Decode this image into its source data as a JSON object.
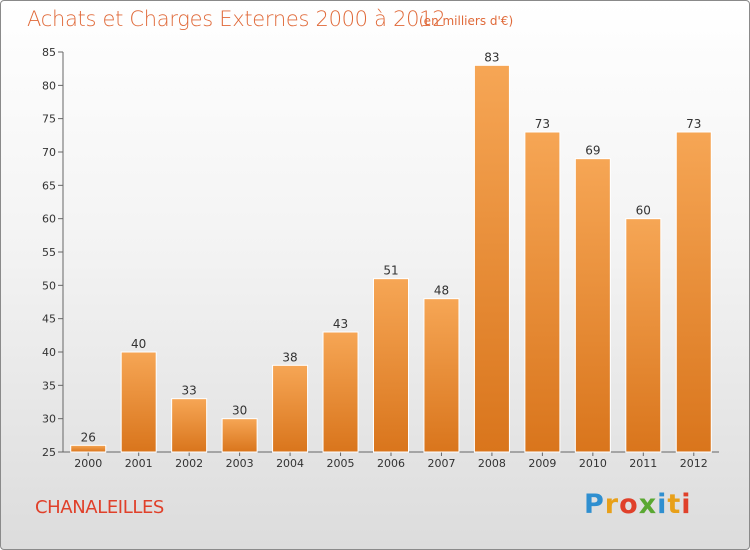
{
  "header": {
    "title": "Achats et Charges Externes 2000 à 2012",
    "subtitle": "(en milliers d'€)"
  },
  "footer": {
    "commune": "CHANALEILLES",
    "logo_letters": [
      "P",
      "r",
      "o",
      "x",
      "i",
      "t",
      "i"
    ],
    "logo_colors": [
      "#2f8fd0",
      "#e8a019",
      "#e0402a",
      "#5aa832",
      "#2f8fd0",
      "#e8a019",
      "#e0402a"
    ]
  },
  "colors": {
    "bar_top": "#f6a655",
    "bar_bottom": "#d9751c",
    "text_accent": "#e06a3a"
  },
  "chart_data": {
    "type": "bar",
    "categories": [
      "2000",
      "2001",
      "2002",
      "2003",
      "2004",
      "2005",
      "2006",
      "2007",
      "2008",
      "2009",
      "2010",
      "2011",
      "2012"
    ],
    "values": [
      26,
      40,
      33,
      30,
      38,
      43,
      51,
      48,
      83,
      73,
      69,
      60,
      73
    ],
    "ylim": [
      25,
      85
    ],
    "yticks": [
      25,
      30,
      35,
      40,
      45,
      50,
      55,
      60,
      65,
      70,
      75,
      80,
      85
    ],
    "grid": false
  }
}
